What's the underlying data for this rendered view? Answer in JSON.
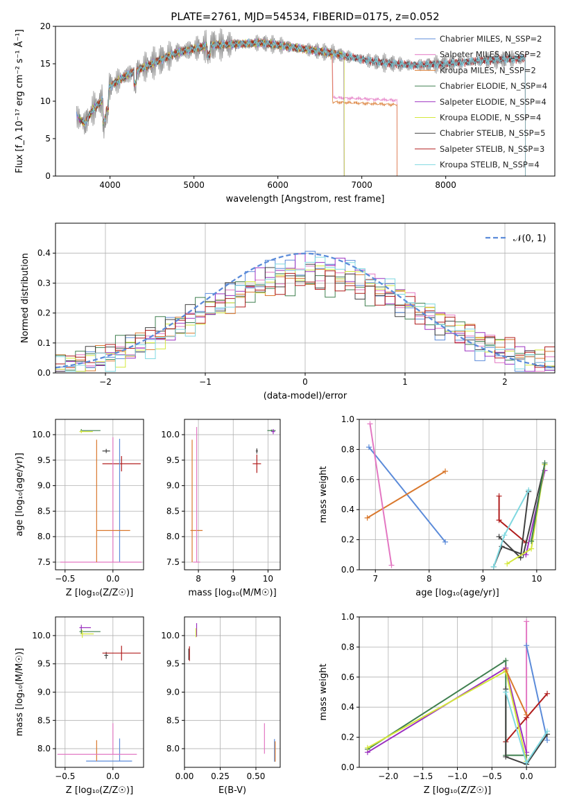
{
  "chart_data": [
    {
      "id": "spectrum",
      "type": "line",
      "title": "PLATE=2761, MJD=54534, FIBERID=0175, z=0.052",
      "xlabel": "wavelength [Angstrom, rest frame]",
      "ylabel": "Flux [f_λ 10⁻¹⁷ erg cm⁻² s⁻¹ Å⁻¹]",
      "xlim": [
        3350,
        9300
      ],
      "ylim": [
        0,
        20
      ],
      "xticks": [
        4000,
        5000,
        6000,
        7000,
        8000
      ],
      "yticks": [
        0,
        5,
        10,
        15,
        20
      ],
      "data_color": "#808080",
      "continuum": [
        [
          3600,
          8
        ],
        [
          3700,
          7
        ],
        [
          3800,
          9
        ],
        [
          3900,
          10
        ],
        [
          4000,
          12
        ],
        [
          4200,
          13.5
        ],
        [
          4500,
          15
        ],
        [
          4800,
          16.5
        ],
        [
          5000,
          17
        ],
        [
          5200,
          17.5
        ],
        [
          5500,
          17.6
        ],
        [
          5800,
          17.8
        ],
        [
          6000,
          17.5
        ],
        [
          6300,
          17
        ],
        [
          6600,
          16.5
        ],
        [
          7000,
          15.6
        ],
        [
          7200,
          15.2
        ],
        [
          7600,
          14.8
        ],
        [
          8000,
          15.0
        ],
        [
          8400,
          15.4
        ],
        [
          8900,
          15.7
        ]
      ],
      "legend": [
        {
          "label": "Chabrier MILES, N_SSP=2",
          "color": "#5b8bd9",
          "end": 8950
        },
        {
          "label": "Salpeter MILES, N_SSP=2",
          "color": "#e377c2",
          "end": 7420,
          "tail": 10.5
        },
        {
          "label": "Kroupa MILES, N_SSP=2",
          "color": "#d9782d",
          "end": 7420,
          "tail": 9.9
        },
        {
          "label": "Chabrier ELODIE, N_SSP=4",
          "color": "#3f7f4f",
          "end": 6790
        },
        {
          "label": "Salpeter ELODIE, N_SSP=4",
          "color": "#9b30c0",
          "end": 6790
        },
        {
          "label": "Kroupa ELODIE, N_SSP=4",
          "color": "#d4e83a",
          "end": 6790
        },
        {
          "label": "Chabrier STELIB, N_SSP=5",
          "color": "#404040",
          "end": 8950
        },
        {
          "label": "Salpeter STELIB, N_SSP=3",
          "color": "#b01c1c",
          "end": 8950
        },
        {
          "label": "Kroupa STELIB, N_SSP=4",
          "color": "#7fd8e0",
          "end": 8950
        }
      ]
    },
    {
      "id": "residuals",
      "type": "step-histogram",
      "xlabel": "(data-model)/error",
      "ylabel": "Normed distribution",
      "xlim": [
        -2.5,
        2.5
      ],
      "ylim": [
        0,
        0.5
      ],
      "xticks": [
        -2,
        -1,
        0,
        1,
        2
      ],
      "yticks": [
        0.0,
        0.1,
        0.2,
        0.3,
        0.4
      ],
      "reference": {
        "label": "𝒩(0, 1)",
        "color": "#5b8bd9"
      },
      "series_colors": [
        "#5b8bd9",
        "#e377c2",
        "#d9782d",
        "#3f7f4f",
        "#9b30c0",
        "#d4e83a",
        "#404040",
        "#b01c1c",
        "#7fd8e0"
      ]
    },
    {
      "id": "age_vs_Z",
      "type": "errorbar",
      "xlabel": "Z [log₁₀(Z/Z☉)]",
      "ylabel": "age  [log₁₀(age/yr)]",
      "xlim": [
        -0.6,
        0.32
      ],
      "ylim": [
        7.35,
        10.3
      ],
      "xticks": [
        -0.5,
        0.0
      ],
      "yticks": [
        7.5,
        8.0,
        8.5,
        9.0,
        9.5,
        10.0
      ],
      "points": [
        {
          "x": -0.33,
          "y": 10.08,
          "xerr": [
            0.01,
            0.2
          ],
          "yerr": [
            0.02,
            0.03
          ],
          "color": "#3f7f4f"
        },
        {
          "x": -0.33,
          "y": 10.06,
          "xerr": [
            0.02,
            0.12
          ],
          "yerr": [
            0.03,
            0.03
          ],
          "color": "#d4e83a"
        },
        {
          "x": -0.07,
          "y": 9.68,
          "xerr": [
            0.04,
            0.04
          ],
          "yerr": [
            0.04,
            0.04
          ],
          "color": "#404040"
        },
        {
          "x": 0.09,
          "y": 9.43,
          "xerr": [
            0.2,
            0.2
          ],
          "yerr": [
            0.15,
            0.15
          ],
          "color": "#b01c1c"
        },
        {
          "x": 0.07,
          "y": 7.5,
          "xerr": [
            0.0,
            0.0
          ],
          "yerr": [
            0.0,
            2.42
          ],
          "color": "#5b8bd9"
        },
        {
          "x": 0.0,
          "y": 7.5,
          "xerr": [
            0.55,
            0.3
          ],
          "yerr": [
            0.0,
            2.45
          ],
          "color": "#e377c2"
        },
        {
          "x": -0.17,
          "y": 8.12,
          "xerr": [
            0.0,
            0.35
          ],
          "yerr": [
            0.62,
            1.78
          ],
          "color": "#d9782d"
        }
      ]
    },
    {
      "id": "age_vs_mass",
      "type": "errorbar",
      "xlabel": "mass [log₁₀(M/M☉)]",
      "ylabel": "",
      "xlim": [
        7.6,
        10.35
      ],
      "ylim": [
        7.35,
        10.3
      ],
      "xticks": [
        8,
        9,
        10
      ],
      "yticks": [
        7.5,
        8.0,
        8.5,
        9.0,
        9.5,
        10.0
      ],
      "points": [
        {
          "x": 10.1,
          "y": 10.08,
          "xerr": [
            0.12,
            0.12
          ],
          "yerr": [
            0.02,
            0.02
          ],
          "color": "#3f7f4f"
        },
        {
          "x": 10.15,
          "y": 10.06,
          "xerr": [
            0.05,
            0.05
          ],
          "yerr": [
            0.05,
            0.05
          ],
          "color": "#9b30c0"
        },
        {
          "x": 9.68,
          "y": 9.68,
          "xerr": [
            0.03,
            0.03
          ],
          "yerr": [
            0.05,
            0.05
          ],
          "color": "#404040"
        },
        {
          "x": 9.68,
          "y": 9.43,
          "xerr": [
            0.12,
            0.12
          ],
          "yerr": [
            0.18,
            0.18
          ],
          "color": "#b01c1c"
        },
        {
          "x": 7.82,
          "y": 8.12,
          "xerr": [
            0.05,
            0.3
          ],
          "yerr": [
            0.62,
            1.78
          ],
          "color": "#d9782d"
        },
        {
          "x": 7.95,
          "y": 7.5,
          "xerr": [
            0.1,
            0.1
          ],
          "yerr": [
            0.0,
            2.65
          ],
          "color": "#e377c2"
        }
      ]
    },
    {
      "id": "massweight_vs_age",
      "type": "line",
      "xlabel": "age  [log₁₀(age/yr)]",
      "ylabel": "mass weight",
      "xlim": [
        6.7,
        10.35
      ],
      "ylim": [
        0,
        1
      ],
      "xticks": [
        7,
        8,
        9,
        10
      ],
      "yticks": [
        0.0,
        0.2,
        0.4,
        0.6,
        0.8,
        1.0
      ],
      "series": [
        {
          "color": "#5b8bd9",
          "points": [
            [
              6.88,
              0.815
            ],
            [
              8.3,
              0.185
            ]
          ]
        },
        {
          "color": "#d9782d",
          "points": [
            [
              6.85,
              0.345
            ],
            [
              8.3,
              0.655
            ]
          ]
        },
        {
          "color": "#e377c2",
          "points": [
            [
              6.9,
              0.97
            ],
            [
              7.3,
              0.03
            ]
          ]
        },
        {
          "color": "#b01c1c",
          "points": [
            [
              9.3,
              0.49
            ],
            [
              9.3,
              0.33
            ],
            [
              9.8,
              0.18
            ]
          ]
        },
        {
          "color": "#404040",
          "points": [
            [
              9.3,
              0.22
            ],
            [
              9.7,
              0.08
            ],
            [
              9.85,
              0.52
            ]
          ]
        },
        {
          "color": "#404040",
          "points": [
            [
              9.2,
              0.02
            ],
            [
              9.35,
              0.155
            ],
            [
              9.75,
              0.1
            ],
            [
              10.15,
              0.7
            ]
          ]
        },
        {
          "color": "#7fd8e0",
          "points": [
            [
              9.2,
              0.02
            ],
            [
              9.4,
              0.23
            ],
            [
              9.85,
              0.53
            ]
          ]
        },
        {
          "color": "#9b30c0",
          "points": [
            [
              9.8,
              0.1
            ],
            [
              10.15,
              0.66
            ]
          ]
        },
        {
          "color": "#d4e83a",
          "points": [
            [
              9.45,
              0.04
            ],
            [
              9.9,
              0.14
            ],
            [
              10.15,
              0.7
            ]
          ]
        },
        {
          "color": "#3f7f4f",
          "points": [
            [
              9.9,
              0.19
            ],
            [
              10.15,
              0.71
            ]
          ]
        }
      ]
    },
    {
      "id": "mass_vs_Z",
      "type": "errorbar",
      "xlabel": "Z [log₁₀(Z/Z☉)]",
      "ylabel": "mass [log₁₀(M/M☉)]",
      "xlim": [
        -0.6,
        0.32
      ],
      "ylim": [
        7.67,
        10.33
      ],
      "xticks": [
        -0.5,
        0.0
      ],
      "yticks": [
        8.0,
        8.5,
        9.0,
        9.5,
        10.0
      ],
      "points": [
        {
          "x": -0.33,
          "y": 10.14,
          "xerr": [
            0.02,
            0.1
          ],
          "yerr": [
            0.05,
            0.05
          ],
          "color": "#9b30c0"
        },
        {
          "x": -0.33,
          "y": 10.07,
          "xerr": [
            0.02,
            0.2
          ],
          "yerr": [
            0.04,
            0.04
          ],
          "color": "#3f7f4f"
        },
        {
          "x": -0.32,
          "y": 10.03,
          "xerr": [
            0.02,
            0.12
          ],
          "yerr": [
            0.07,
            0.07
          ],
          "color": "#d4e83a"
        },
        {
          "x": -0.07,
          "y": 9.65,
          "xerr": [
            0.02,
            0.02
          ],
          "yerr": [
            0.06,
            0.06
          ],
          "color": "#404040"
        },
        {
          "x": 0.09,
          "y": 9.69,
          "xerr": [
            0.2,
            0.2
          ],
          "yerr": [
            0.13,
            0.13
          ],
          "color": "#b01c1c"
        },
        {
          "x": 0.07,
          "y": 7.78,
          "xerr": [
            0.35,
            0.13
          ],
          "yerr": [
            0.0,
            0.4
          ],
          "color": "#5b8bd9"
        },
        {
          "x": -0.17,
          "y": 7.78,
          "xerr": [
            0.0,
            0.0
          ],
          "yerr": [
            0.0,
            0.37
          ],
          "color": "#d9782d"
        },
        {
          "x": 0.0,
          "y": 7.9,
          "xerr": [
            0.58,
            0.25
          ],
          "yerr": [
            0.0,
            0.55
          ],
          "color": "#e377c2"
        }
      ]
    },
    {
      "id": "mass_vs_EBV",
      "type": "errorbar",
      "xlabel": "E(B-V)",
      "ylabel": "",
      "xlim": [
        0.0,
        0.67
      ],
      "ylim": [
        7.67,
        10.33
      ],
      "xticks": [
        0.0,
        0.25,
        0.5
      ],
      "yticks": [
        8.0,
        8.5,
        9.0,
        9.5,
        10.0
      ],
      "points": [
        {
          "x": 0.085,
          "y": 10.1,
          "xerr": [
            0,
            0
          ],
          "yerr": [
            0.12,
            0.12
          ],
          "color": "#9b30c0"
        },
        {
          "x": 0.08,
          "y": 10.05,
          "xerr": [
            0,
            0
          ],
          "yerr": [
            0.08,
            0.08
          ],
          "color": "#d4e83a"
        },
        {
          "x": 0.03,
          "y": 9.67,
          "xerr": [
            0,
            0
          ],
          "yerr": [
            0.1,
            0.1
          ],
          "color": "#404040"
        },
        {
          "x": 0.035,
          "y": 9.68,
          "xerr": [
            0,
            0
          ],
          "yerr": [
            0.13,
            0.13
          ],
          "color": "#b01c1c"
        },
        {
          "x": 0.56,
          "y": 8.18,
          "xerr": [
            0,
            0
          ],
          "yerr": [
            0.27,
            0.27
          ],
          "color": "#e377c2"
        },
        {
          "x": 0.63,
          "y": 7.97,
          "xerr": [
            0,
            0
          ],
          "yerr": [
            0.2,
            0.2
          ],
          "color": "#5b8bd9"
        },
        {
          "x": 0.635,
          "y": 7.95,
          "xerr": [
            0,
            0
          ],
          "yerr": [
            0.18,
            0.18
          ],
          "color": "#d9782d"
        }
      ]
    },
    {
      "id": "massweight_vs_Z",
      "type": "line",
      "xlabel": "Z [log₁₀(Z/Z☉)]",
      "ylabel": "mass weight",
      "xlim": [
        -2.42,
        0.42
      ],
      "ylim": [
        0,
        1
      ],
      "xticks": [
        -2.0,
        -1.5,
        -1.0,
        -0.5,
        0.0
      ],
      "yticks": [
        0.0,
        0.2,
        0.4,
        0.6,
        0.8,
        1.0
      ],
      "series": [
        {
          "color": "#e377c2",
          "points": [
            [
              0.0,
              0.97
            ],
            [
              0.0,
              0.03
            ]
          ]
        },
        {
          "color": "#5b8bd9",
          "points": [
            [
              0.0,
              0.81
            ],
            [
              0.3,
              0.18
            ]
          ]
        },
        {
          "color": "#b01c1c",
          "points": [
            [
              -0.3,
              0.17
            ],
            [
              0.0,
              0.33
            ],
            [
              0.3,
              0.49
            ]
          ]
        },
        {
          "color": "#3f7f4f",
          "points": [
            [
              -2.3,
              0.12
            ],
            [
              -0.3,
              0.71
            ],
            [
              -0.3,
              0.08
            ],
            [
              0.0,
              0.08
            ]
          ]
        },
        {
          "color": "#9b30c0",
          "points": [
            [
              -2.3,
              0.1
            ],
            [
              -0.3,
              0.66
            ],
            [
              0.0,
              0.1
            ]
          ]
        },
        {
          "color": "#d4e83a",
          "points": [
            [
              -2.3,
              0.13
            ],
            [
              -0.3,
              0.64
            ],
            [
              0.0,
              0.04
            ]
          ]
        },
        {
          "color": "#d9782d",
          "points": [
            [
              -0.3,
              0.65
            ],
            [
              0.0,
              0.35
            ]
          ]
        },
        {
          "color": "#404040",
          "points": [
            [
              -0.3,
              0.52
            ],
            [
              -0.3,
              0.07
            ],
            [
              0.0,
              0.02
            ],
            [
              0.3,
              0.22
            ]
          ]
        },
        {
          "color": "#7fd8e0",
          "points": [
            [
              -0.3,
              0.5
            ],
            [
              0.0,
              0.03
            ],
            [
              0.3,
              0.24
            ]
          ]
        }
      ]
    }
  ]
}
